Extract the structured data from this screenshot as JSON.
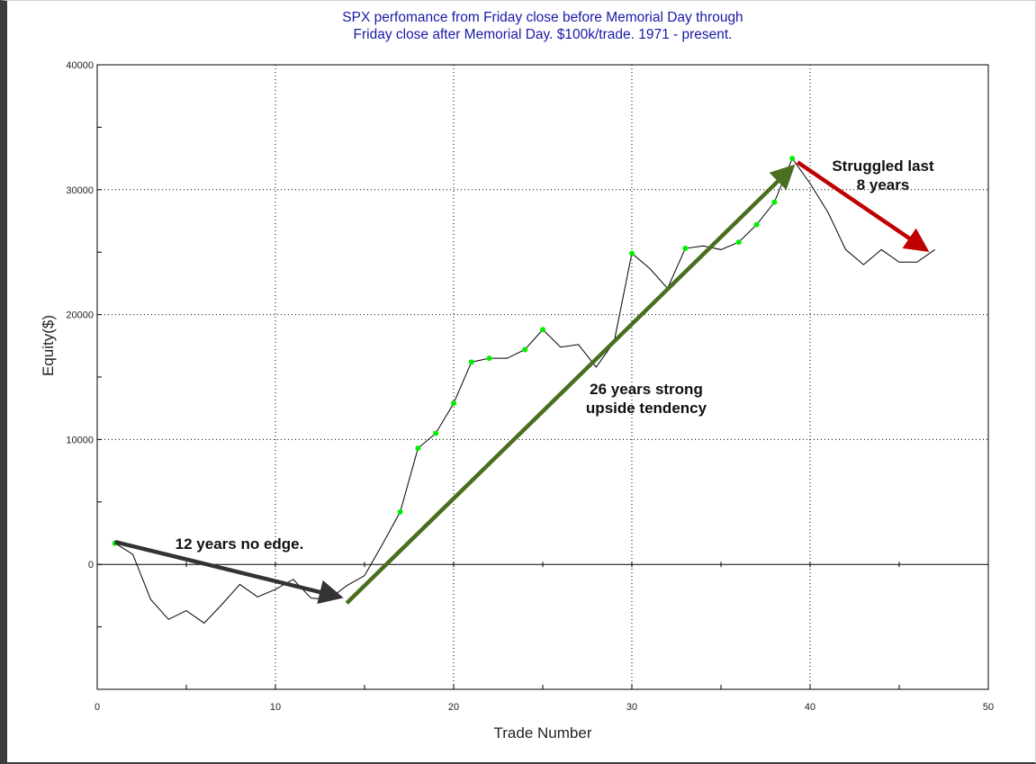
{
  "chart_data": {
    "type": "line",
    "title_line1": "SPX perfomance from Friday close before Memorial Day through",
    "title_line2": "Friday close after Memorial Day. $100k/trade. 1971 - present.",
    "xlabel": "Trade Number",
    "ylabel": "Equity($)",
    "xlim": [
      0,
      50
    ],
    "ylim": [
      -10000,
      40000
    ],
    "x_ticks": [
      0,
      10,
      20,
      30,
      40,
      50
    ],
    "y_ticks": [
      0,
      10000,
      20000,
      30000,
      40000
    ],
    "grid": true,
    "series": [
      {
        "color": "#000000",
        "x": [
          1,
          2,
          3,
          4,
          5,
          6,
          7,
          8,
          9,
          10,
          11,
          12,
          13,
          14,
          15,
          16,
          17,
          18,
          19,
          20,
          21,
          22,
          23,
          24,
          25,
          26,
          27,
          28,
          29,
          30,
          31,
          32,
          33,
          34,
          35,
          36,
          37,
          38,
          39,
          40,
          41,
          42,
          43,
          44,
          45,
          46,
          47
        ],
        "y": [
          1700,
          800,
          -2800,
          -4400,
          -3700,
          -4700,
          -3200,
          -1600,
          -2600,
          -2000,
          -1200,
          -2700,
          -2800,
          -1700,
          -900,
          1600,
          4200,
          9300,
          10500,
          12900,
          16200,
          16500,
          16500,
          17200,
          18800,
          17400,
          17600,
          15800,
          17800,
          24900,
          23700,
          22100,
          25300,
          25500,
          25200,
          25800,
          27200,
          29000,
          32500,
          30500,
          28200,
          25200,
          24000,
          25200,
          24200,
          24200,
          25200
        ]
      }
    ],
    "new_high_markers": {
      "color": "#00ee00",
      "x": [
        1,
        17,
        18,
        19,
        20,
        21,
        22,
        24,
        25,
        30,
        33,
        36,
        37,
        38,
        39
      ]
    },
    "annotations": [
      {
        "text_lines": [
          "12 years no edge."
        ],
        "arrow_color": "#333333",
        "arrow_from": [
          1,
          1800
        ],
        "arrow_to": [
          13.6,
          -2600
        ]
      },
      {
        "text_lines": [
          "26 years strong",
          "upside tendency"
        ],
        "arrow_color": "#4a6e1f",
        "arrow_from": [
          14,
          -3100
        ],
        "arrow_to": [
          39,
          31800
        ]
      },
      {
        "text_lines": [
          "Struggled last",
          "8 years"
        ],
        "arrow_color": "#c00000",
        "arrow_from": [
          39.3,
          32200
        ],
        "arrow_to": [
          46.5,
          25200
        ]
      }
    ]
  }
}
